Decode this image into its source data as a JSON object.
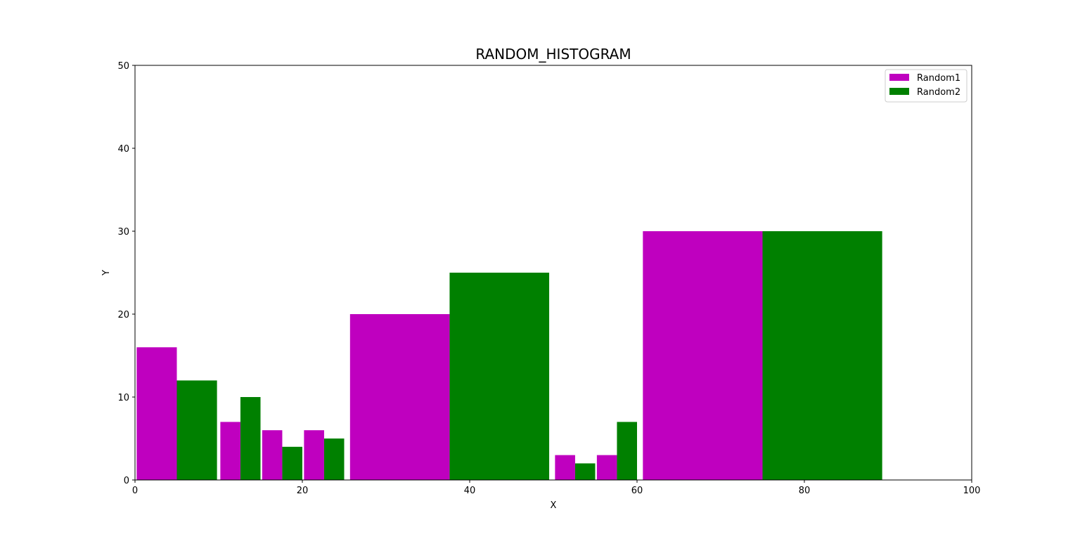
{
  "chart_data": {
    "type": "bar",
    "title": "RANDOM_HISTOGRAM",
    "xlabel": "X",
    "ylabel": "Y",
    "xlim": [
      0,
      100
    ],
    "ylim": [
      0,
      50
    ],
    "xticks": [
      "0",
      "20",
      "40",
      "60",
      "80",
      "100"
    ],
    "yticks": [
      "0",
      "10",
      "20",
      "30",
      "40",
      "50"
    ],
    "grid": false,
    "legend": "top-right",
    "series": [
      {
        "name": "Random1",
        "color": "#bf00bf",
        "bars": [
          {
            "x0": 0.2,
            "x1": 5.0,
            "value": 16
          },
          {
            "x0": 10.2,
            "x1": 12.6,
            "value": 7
          },
          {
            "x0": 15.2,
            "x1": 17.6,
            "value": 6
          },
          {
            "x0": 20.2,
            "x1": 22.6,
            "value": 6
          },
          {
            "x0": 25.7,
            "x1": 37.6,
            "value": 20
          },
          {
            "x0": 50.2,
            "x1": 52.6,
            "value": 3
          },
          {
            "x0": 55.2,
            "x1": 57.6,
            "value": 3
          },
          {
            "x0": 60.7,
            "x1": 75.0,
            "value": 30
          }
        ]
      },
      {
        "name": "Random2",
        "color": "#008000",
        "bars": [
          {
            "x0": 5.0,
            "x1": 9.8,
            "value": 12
          },
          {
            "x0": 12.6,
            "x1": 15.0,
            "value": 10
          },
          {
            "x0": 17.6,
            "x1": 20.0,
            "value": 4
          },
          {
            "x0": 22.6,
            "x1": 25.0,
            "value": 5
          },
          {
            "x0": 37.6,
            "x1": 49.5,
            "value": 25
          },
          {
            "x0": 52.6,
            "x1": 55.0,
            "value": 2
          },
          {
            "x0": 57.6,
            "x1": 60.0,
            "value": 7
          },
          {
            "x0": 75.0,
            "x1": 89.3,
            "value": 30
          }
        ]
      }
    ]
  }
}
